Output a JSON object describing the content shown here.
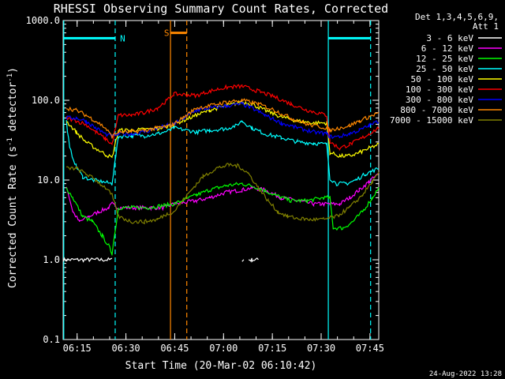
{
  "chart_data": {
    "type": "line",
    "title": "RHESSI Observing Summary Count Rates, Corrected",
    "xlabel": "Start Time (20-Mar-02 06:10:42)",
    "ylabel": "Corrected Count Rate (s",
    "ylabel_sup1": "-1",
    "ylabel_mid": " detector",
    "ylabel_sup2": "-1",
    "ylabel_end": ")",
    "y_scale": "log",
    "ylim": [
      0.1,
      1000
    ],
    "yticks": [
      0.1,
      1.0,
      10.0,
      100.0,
      1000.0
    ],
    "ytick_labels": [
      "0.1",
      "1.0",
      "10.0",
      "100.0",
      "1000.0"
    ],
    "xlim_minutes": [
      0,
      97
    ],
    "xticks_minutes": [
      4.3,
      19.3,
      34.3,
      49.3,
      64.3,
      79.3,
      94.3
    ],
    "xtick_labels": [
      "06:15",
      "06:30",
      "06:45",
      "07:00",
      "07:15",
      "07:30",
      "07:45"
    ],
    "grid": false,
    "legend_placement": "right",
    "legend_header": [
      "Det 1,3,4,5,6,9,",
      "Att 1"
    ],
    "annotations": [
      {
        "text": "N",
        "x": 17.5,
        "y": 600,
        "color": "#00ffff"
      },
      {
        "text": "S",
        "x": 31.0,
        "y": 700,
        "color": "#ff8800"
      }
    ],
    "footer_date": "24-Aug-2022 13:28",
    "series": [
      {
        "name": "3 - 6 keV",
        "color": "#ffffff",
        "x": [
          0,
          15,
          16,
          17,
          38,
          41,
          45,
          47,
          55,
          55.5,
          56,
          57,
          58,
          60
        ],
        "y": [
          1.0,
          1.0,
          null,
          null,
          null,
          null,
          null,
          null,
          1.0,
          1.0,
          null,
          1.0,
          1.0,
          1.0
        ]
      },
      {
        "name": "6 - 12 keV",
        "color": "#ff00ff",
        "x": [
          1,
          3,
          5,
          8,
          11,
          14,
          15,
          17,
          23,
          27,
          31,
          34,
          41,
          45,
          50,
          55,
          58,
          62,
          67,
          72,
          77,
          79,
          82,
          85,
          88,
          91,
          94,
          97
        ],
        "y": [
          8.5,
          4.0,
          3.0,
          3.5,
          4.0,
          4.5,
          5.0,
          4.5,
          4.5,
          4.5,
          4.5,
          5.0,
          5.5,
          6.0,
          7.0,
          7.5,
          8.0,
          7.5,
          6.0,
          5.5,
          5.0,
          5.0,
          5.0,
          5.0,
          6.0,
          7.5,
          9.5,
          12.0
        ]
      },
      {
        "name": "12 - 25 keV",
        "color": "#00ff00",
        "x": [
          1,
          3,
          6,
          9,
          12,
          14,
          15,
          17,
          21,
          26,
          31,
          34,
          41,
          45,
          50,
          55,
          60,
          65,
          70,
          75,
          80,
          82,
          83,
          86,
          89,
          92,
          95,
          97
        ],
        "y": [
          8.0,
          6.0,
          3.5,
          3.0,
          2.0,
          1.5,
          1.2,
          4.5,
          4.5,
          4.5,
          4.8,
          5.0,
          6.5,
          7.5,
          8.5,
          9.0,
          8.0,
          6.5,
          5.5,
          5.5,
          6.0,
          6.0,
          2.5,
          2.5,
          3.0,
          4.0,
          6.0,
          8.0
        ]
      },
      {
        "name": "25 - 50 keV",
        "color": "#00ffff",
        "x": [
          1,
          2,
          4,
          6,
          9,
          12,
          15,
          17,
          21,
          25,
          29,
          33,
          34,
          41,
          45,
          50,
          53,
          55,
          58,
          62,
          67,
          72,
          77,
          81,
          82,
          84,
          87,
          90,
          93,
          97
        ],
        "y": [
          55,
          25,
          15,
          11,
          10,
          9.5,
          9.0,
          35,
          36,
          36,
          38,
          42,
          45,
          40,
          42,
          44,
          48,
          55,
          45,
          38,
          34,
          30,
          29,
          28,
          10.5,
          9.0,
          9.0,
          10.0,
          12.0,
          14.0
        ]
      },
      {
        "name": "50 - 100 keV",
        "color": "#ffff00",
        "x": [
          1,
          4,
          7,
          10,
          13,
          15,
          17,
          21,
          25,
          29,
          33,
          34,
          41,
          45,
          50,
          55,
          58,
          62,
          67,
          72,
          77,
          81,
          82,
          85,
          88,
          91,
          94,
          97
        ],
        "y": [
          55,
          40,
          30,
          25,
          21,
          19,
          42,
          42,
          43,
          44,
          48,
          50,
          65,
          75,
          85,
          95,
          90,
          75,
          62,
          55,
          52,
          52,
          22,
          20,
          20,
          22,
          25,
          28
        ]
      },
      {
        "name": "100 - 300 keV",
        "color": "#ff0000",
        "x": [
          1,
          4,
          7,
          10,
          13,
          15,
          17,
          21,
          25,
          29,
          32,
          34,
          41,
          45,
          50,
          55,
          60,
          65,
          70,
          75,
          81,
          82,
          85,
          88,
          91,
          94,
          97
        ],
        "y": [
          60,
          55,
          50,
          40,
          33,
          28,
          65,
          65,
          70,
          80,
          100,
          120,
          115,
          130,
          145,
          150,
          130,
          110,
          90,
          75,
          65,
          30,
          25,
          28,
          32,
          38,
          45
        ]
      },
      {
        "name": "300 - 800 keV",
        "color": "#0000ff",
        "x": [
          1,
          4,
          7,
          10,
          13,
          15,
          17,
          21,
          25,
          29,
          32,
          34,
          41,
          45,
          50,
          55,
          58,
          62,
          67,
          72,
          77,
          81,
          82,
          85,
          88,
          91,
          94,
          97
        ],
        "y": [
          60,
          60,
          55,
          45,
          38,
          35,
          38,
          38,
          40,
          45,
          48,
          50,
          75,
          80,
          85,
          90,
          80,
          65,
          52,
          45,
          40,
          38,
          35,
          35,
          38,
          42,
          48,
          55
        ]
      },
      {
        "name": "800 - 7000 keV",
        "color": "#ff8800",
        "x": [
          1,
          4,
          7,
          10,
          13,
          15,
          17,
          21,
          25,
          29,
          33,
          34,
          41,
          45,
          50,
          55,
          60,
          65,
          70,
          75,
          81,
          82,
          85,
          88,
          91,
          94,
          97
        ],
        "y": [
          80,
          75,
          65,
          55,
          45,
          35,
          40,
          40,
          42,
          45,
          48,
          50,
          80,
          85,
          95,
          100,
          90,
          75,
          60,
          50,
          45,
          42,
          45,
          48,
          55,
          62,
          70
        ]
      },
      {
        "name": "7000 - 15000 keV",
        "color": "#808000",
        "x": [
          1,
          4,
          7,
          10,
          13,
          15,
          17,
          21,
          25,
          29,
          32,
          34,
          41,
          43,
          47,
          51,
          54,
          57,
          60,
          63,
          66,
          69,
          72,
          76,
          80,
          84,
          88,
          92,
          95,
          97
        ],
        "y": [
          14,
          14,
          12,
          10,
          8,
          6.5,
          3.5,
          3.0,
          3.0,
          3.2,
          3.8,
          4.0,
          9.0,
          11.0,
          14.0,
          15.5,
          15.0,
          12.0,
          8.0,
          5.5,
          4.0,
          3.5,
          3.3,
          3.2,
          3.2,
          3.5,
          4.5,
          6.5,
          9.5,
          12.0
        ]
      }
    ]
  }
}
